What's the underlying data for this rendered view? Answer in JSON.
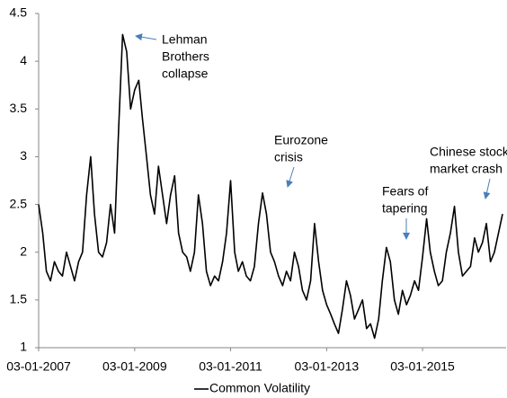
{
  "chart_data": {
    "type": "line",
    "x": [
      "2007-01-03",
      "2007-02-03",
      "2007-03-03",
      "2007-04-03",
      "2007-05-03",
      "2007-06-03",
      "2007-07-03",
      "2007-08-03",
      "2007-09-03",
      "2007-10-03",
      "2007-11-03",
      "2007-12-03",
      "2008-01-03",
      "2008-02-03",
      "2008-03-03",
      "2008-04-03",
      "2008-05-03",
      "2008-06-03",
      "2008-07-03",
      "2008-08-03",
      "2008-09-03",
      "2008-10-03",
      "2008-11-03",
      "2008-12-03",
      "2009-01-03",
      "2009-02-03",
      "2009-03-03",
      "2009-04-03",
      "2009-05-03",
      "2009-06-03",
      "2009-07-03",
      "2009-08-03",
      "2009-09-03",
      "2009-10-03",
      "2009-11-03",
      "2009-12-03",
      "2010-01-03",
      "2010-02-03",
      "2010-03-03",
      "2010-04-03",
      "2010-05-03",
      "2010-06-03",
      "2010-07-03",
      "2010-08-03",
      "2010-09-03",
      "2010-10-03",
      "2010-11-03",
      "2010-12-03",
      "2011-01-03",
      "2011-02-03",
      "2011-03-03",
      "2011-04-03",
      "2011-05-03",
      "2011-06-03",
      "2011-07-03",
      "2011-08-03",
      "2011-09-03",
      "2011-10-03",
      "2011-11-03",
      "2011-12-03",
      "2012-01-03",
      "2012-02-03",
      "2012-03-03",
      "2012-04-03",
      "2012-05-03",
      "2012-06-03",
      "2012-07-03",
      "2012-08-03",
      "2012-09-03",
      "2012-10-03",
      "2012-11-03",
      "2012-12-03",
      "2013-01-03",
      "2013-02-03",
      "2013-03-03",
      "2013-04-03",
      "2013-05-03",
      "2013-06-03",
      "2013-07-03",
      "2013-08-03",
      "2013-09-03",
      "2013-10-03",
      "2013-11-03",
      "2013-12-03",
      "2014-01-03",
      "2014-02-03",
      "2014-03-03",
      "2014-04-03",
      "2014-05-03",
      "2014-06-03",
      "2014-07-03",
      "2014-08-03",
      "2014-09-03",
      "2014-10-03",
      "2014-11-03",
      "2014-12-03",
      "2015-01-03",
      "2015-02-03",
      "2015-03-03",
      "2015-04-03",
      "2015-05-03",
      "2015-06-03",
      "2015-07-03",
      "2015-08-03",
      "2015-09-03",
      "2015-10-03",
      "2015-11-03",
      "2015-12-03",
      "2016-01-03",
      "2016-02-03",
      "2016-03-03",
      "2016-04-03",
      "2016-05-03",
      "2016-06-03",
      "2016-07-03",
      "2016-08-03",
      "2016-09-03"
    ],
    "series": [
      {
        "name": "Common Volatility",
        "color": "#000000",
        "values": [
          2.5,
          2.2,
          1.8,
          1.7,
          1.9,
          1.8,
          1.75,
          2.0,
          1.85,
          1.7,
          1.9,
          2.0,
          2.6,
          3.0,
          2.4,
          2.0,
          1.95,
          2.1,
          2.5,
          2.2,
          3.3,
          4.28,
          4.1,
          3.5,
          3.7,
          3.8,
          3.4,
          3.0,
          2.6,
          2.4,
          2.9,
          2.6,
          2.3,
          2.6,
          2.8,
          2.2,
          2.0,
          1.95,
          1.8,
          2.0,
          2.6,
          2.3,
          1.8,
          1.65,
          1.75,
          1.7,
          1.9,
          2.2,
          2.75,
          2.0,
          1.8,
          1.9,
          1.75,
          1.7,
          1.85,
          2.3,
          2.62,
          2.4,
          2.0,
          1.9,
          1.75,
          1.65,
          1.8,
          1.7,
          2.0,
          1.85,
          1.6,
          1.5,
          1.7,
          2.3,
          1.9,
          1.6,
          1.45,
          1.35,
          1.25,
          1.15,
          1.4,
          1.7,
          1.55,
          1.3,
          1.4,
          1.5,
          1.2,
          1.25,
          1.1,
          1.3,
          1.7,
          2.05,
          1.9,
          1.5,
          1.35,
          1.6,
          1.45,
          1.55,
          1.7,
          1.6,
          1.95,
          2.35,
          2.0,
          1.8,
          1.65,
          1.7,
          2.0,
          2.2,
          2.48,
          2.0,
          1.75,
          1.8,
          1.85,
          2.15,
          2.0,
          2.1,
          2.3,
          1.9,
          2.0,
          2.2,
          2.4
        ]
      }
    ],
    "xlim": [
      "2007-01-03",
      "2016-09-30"
    ],
    "xticks": [
      {
        "value": "2007-01-03",
        "label": "03-01-2007"
      },
      {
        "value": "2009-01-03",
        "label": "03-01-2009"
      },
      {
        "value": "2011-01-03",
        "label": "03-01-2011"
      },
      {
        "value": "2013-01-03",
        "label": "03-01-2013"
      },
      {
        "value": "2015-01-03",
        "label": "03-01-2015"
      }
    ],
    "ylim": [
      1,
      4.5
    ],
    "yticks": [
      1,
      1.5,
      2,
      2.5,
      3,
      3.5,
      4,
      4.5
    ],
    "grid": false,
    "legend": "bottom",
    "annotations": [
      {
        "text": [
          "Lehman",
          "Brothers",
          "collapse"
        ]
      },
      {
        "text": [
          "Eurozone",
          "crisis"
        ]
      },
      {
        "text": [
          "Fears of",
          "tapering"
        ]
      },
      {
        "text": [
          "Chinese stock",
          "market crash"
        ]
      }
    ]
  }
}
